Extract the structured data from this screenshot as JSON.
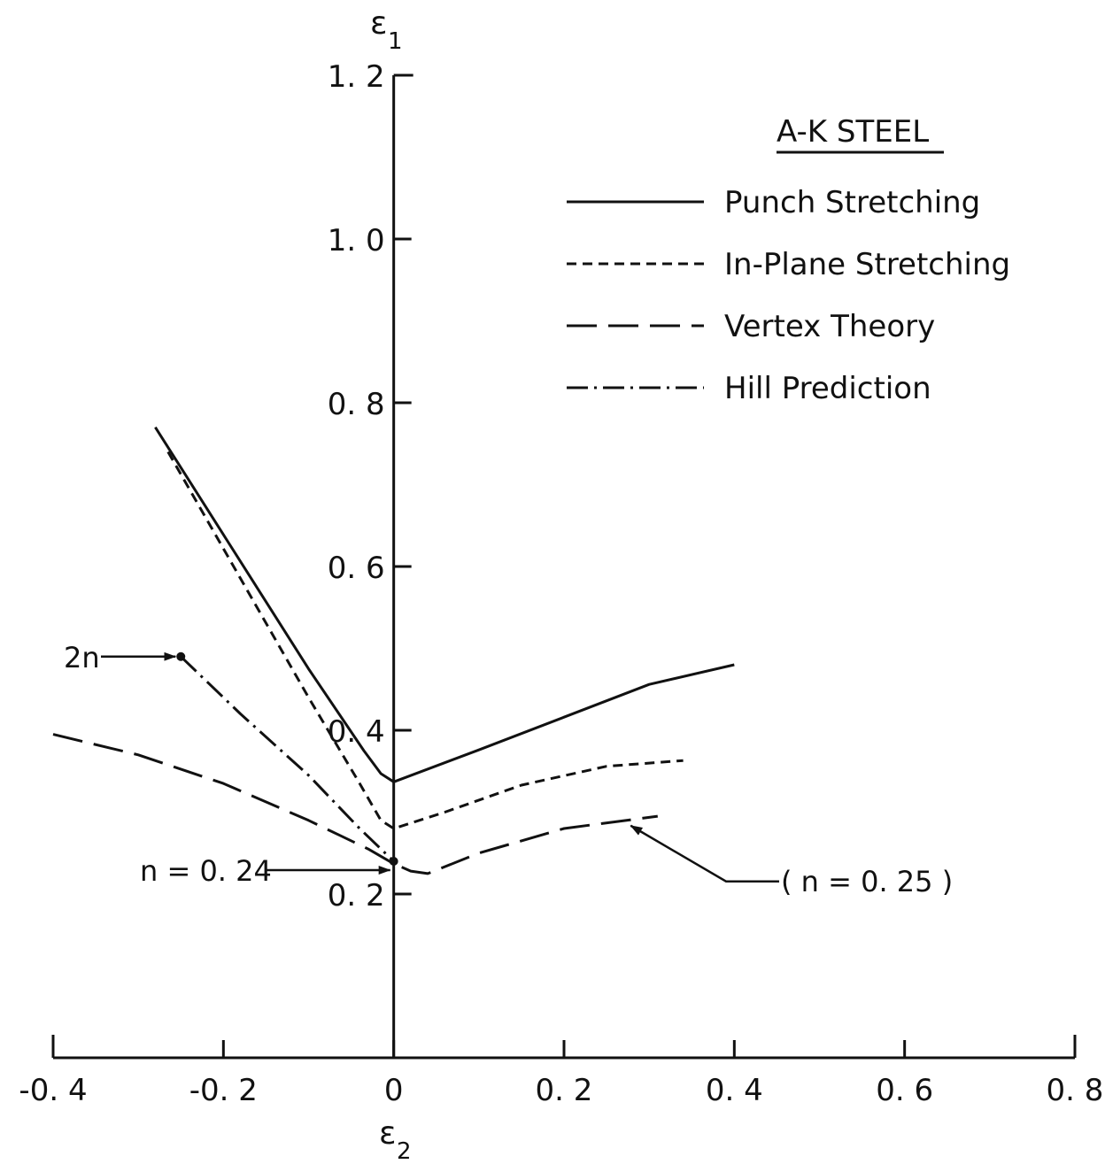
{
  "chart_data": {
    "type": "line",
    "title": "A-K STEEL",
    "xlabel": {
      "symbol": "ε",
      "subscript": "2"
    },
    "ylabel": {
      "symbol": "ε",
      "subscript": "1"
    },
    "xlim": [
      -0.4,
      0.8
    ],
    "ylim": [
      0,
      1.2
    ],
    "x_ticks": [
      {
        "value": -0.4,
        "label": "-0. 4"
      },
      {
        "value": -0.2,
        "label": "-0. 2"
      },
      {
        "value": 0.0,
        "label": "0"
      },
      {
        "value": 0.2,
        "label": "0. 2"
      },
      {
        "value": 0.4,
        "label": "0. 4"
      },
      {
        "value": 0.6,
        "label": "0. 6"
      },
      {
        "value": 0.8,
        "label": "0. 8"
      }
    ],
    "y_ticks": [
      {
        "value": 0.2,
        "label": "0. 2"
      },
      {
        "value": 0.4,
        "label": "0. 4"
      },
      {
        "value": 0.6,
        "label": "0. 6"
      },
      {
        "value": 0.8,
        "label": "0. 8"
      },
      {
        "value": 1.0,
        "label": "1. 0"
      },
      {
        "value": 1.2,
        "label": "1. 2"
      }
    ],
    "grid": false,
    "legend_position": "top-right",
    "series": [
      {
        "name": "Punch Stretching",
        "style": "solid",
        "points": [
          [
            -0.28,
            0.77
          ],
          [
            -0.1,
            0.475
          ],
          [
            -0.035,
            0.375
          ],
          [
            -0.015,
            0.347
          ],
          [
            0.0,
            0.337
          ],
          [
            0.1,
            0.376
          ],
          [
            0.2,
            0.416
          ],
          [
            0.3,
            0.456
          ],
          [
            0.4,
            0.48
          ]
        ]
      },
      {
        "name": "In-Plane Stretching",
        "style": "dashed",
        "points": [
          [
            -0.265,
            0.74
          ],
          [
            -0.1,
            0.44
          ],
          [
            -0.04,
            0.335
          ],
          [
            -0.015,
            0.29
          ],
          [
            0.0,
            0.28
          ],
          [
            0.06,
            0.3
          ],
          [
            0.15,
            0.333
          ],
          [
            0.25,
            0.356
          ],
          [
            0.34,
            0.363
          ]
        ]
      },
      {
        "name": "Vertex Theory",
        "style": "long-dash",
        "points": [
          [
            -0.4,
            0.395
          ],
          [
            -0.3,
            0.37
          ],
          [
            -0.2,
            0.335
          ],
          [
            -0.1,
            0.29
          ],
          [
            -0.03,
            0.255
          ],
          [
            0.0,
            0.237
          ],
          [
            0.02,
            0.228
          ],
          [
            0.04,
            0.225
          ],
          [
            0.1,
            0.25
          ],
          [
            0.2,
            0.28
          ],
          [
            0.31,
            0.295
          ]
        ]
      },
      {
        "name": "Hill Prediction",
        "style": "dash-dot",
        "points": [
          [
            -0.25,
            0.49
          ],
          [
            -0.18,
            0.42
          ],
          [
            -0.1,
            0.345
          ],
          [
            -0.04,
            0.28
          ],
          [
            0.0,
            0.24
          ]
        ]
      }
    ],
    "annotations": [
      {
        "text": "2n",
        "target": [
          -0.25,
          0.49
        ]
      },
      {
        "text": "n = 0. 24",
        "target": [
          0.0,
          0.24
        ]
      },
      {
        "text": "( n = 0. 25 )",
        "target": [
          0.27,
          0.29
        ]
      }
    ]
  }
}
